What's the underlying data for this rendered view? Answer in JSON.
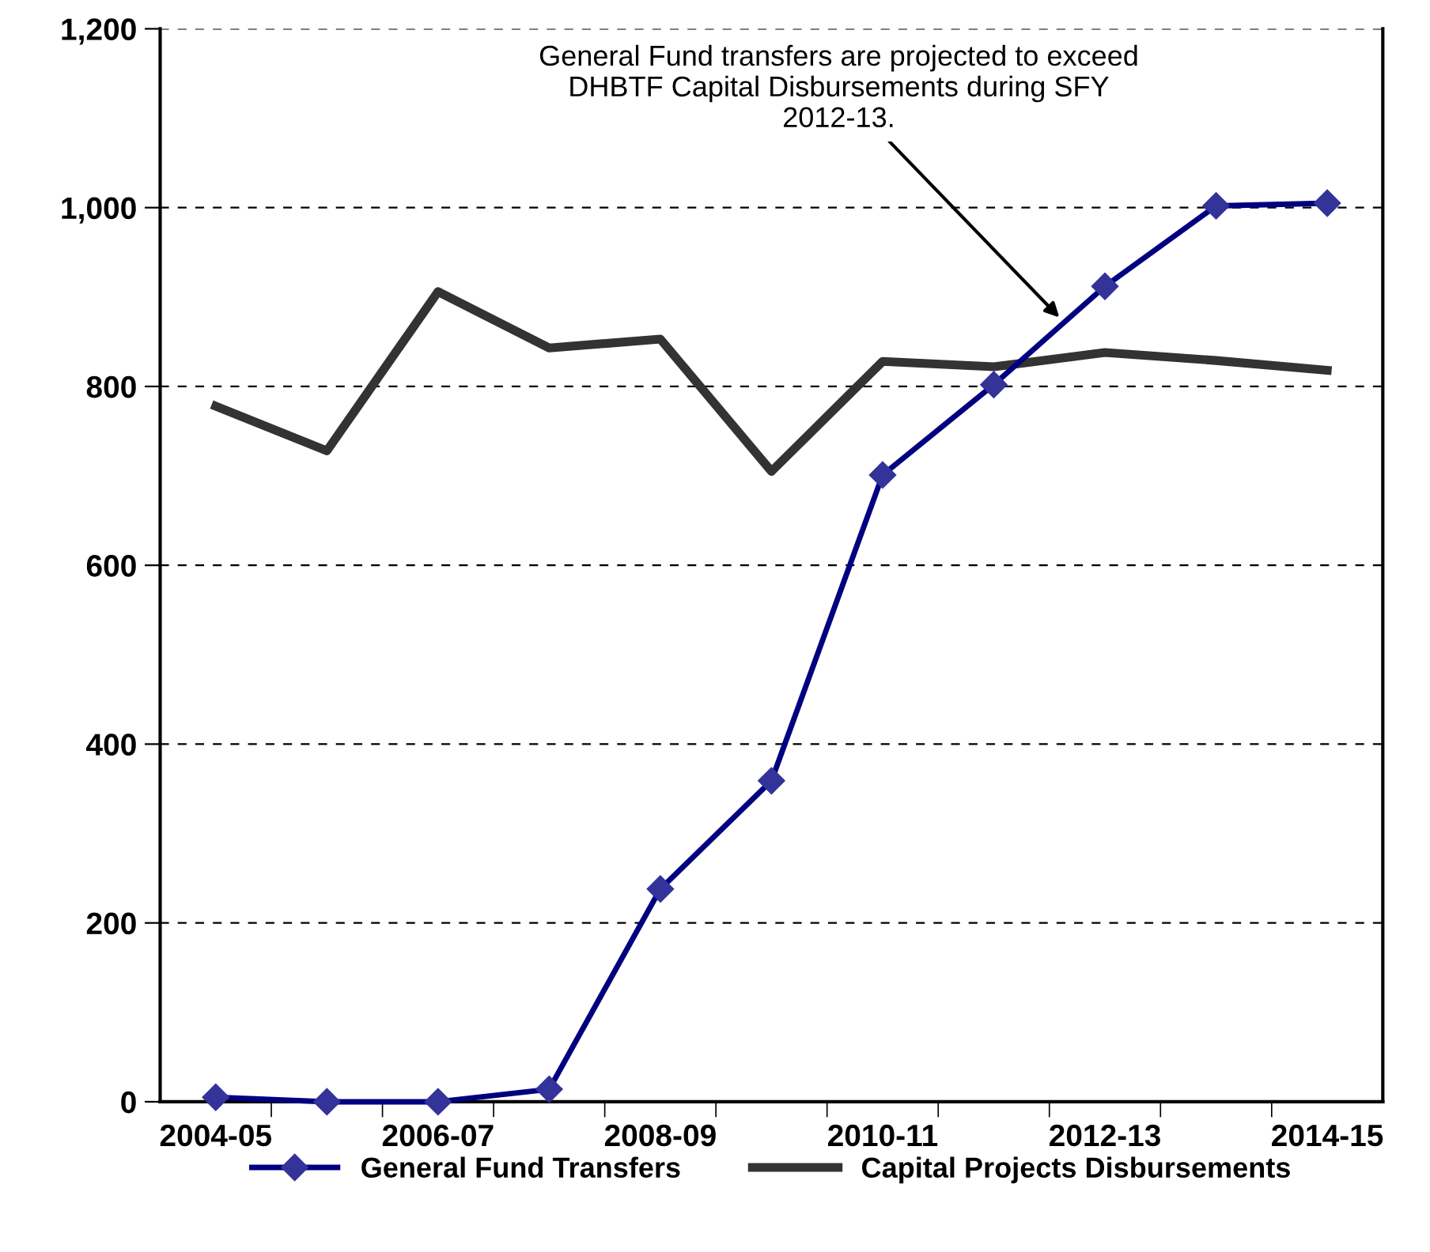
{
  "chart_data": {
    "type": "line",
    "categories": [
      "2004-05",
      null,
      "2006-07",
      null,
      "2008-09",
      null,
      "2010-11",
      null,
      "2012-13",
      null,
      "2014-15"
    ],
    "series": [
      {
        "name": "General Fund Transfers",
        "color": "#000080",
        "marker": "diamond",
        "values": [
          5,
          0,
          0,
          14,
          238,
          359,
          701,
          802,
          912,
          1002,
          1005
        ]
      },
      {
        "name": "Capital Projects Disbursements",
        "color": "#333333",
        "marker": "none",
        "values": [
          778,
          728,
          906,
          843,
          853,
          705,
          828,
          822,
          838,
          829,
          818
        ]
      }
    ],
    "ylim": [
      0,
      1200
    ],
    "yticks": [
      0,
      200,
      400,
      600,
      800,
      {
        "value": 1000,
        "label": "1,000"
      },
      {
        "value": 1200,
        "label": "1,200"
      }
    ],
    "grid": "y",
    "legend": "bottom",
    "annotations": [
      "General Fund transfers are projected to exceed DHBTF Capital Disbursements during SFY 2012-13."
    ]
  }
}
